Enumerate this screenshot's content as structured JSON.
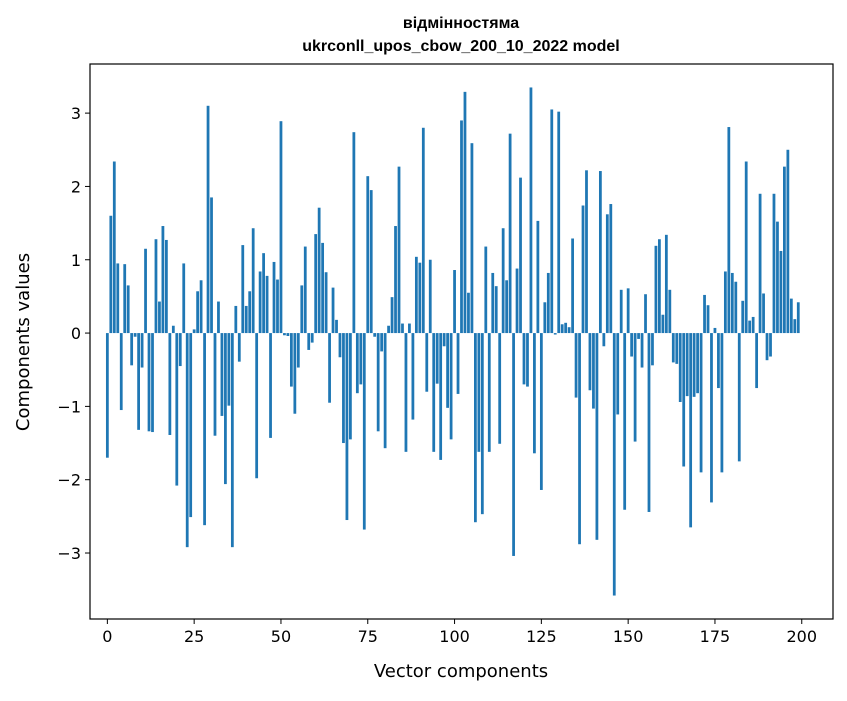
{
  "chart_data": {
    "type": "bar",
    "title_line1": "відмінностяма",
    "title_line2": "ukrconll_upos_cbow_200_10_2022 model",
    "xlabel": "Vector components",
    "ylabel": "Components values",
    "xlim": [
      -5,
      209
    ],
    "ylim": [
      -3.9,
      3.67
    ],
    "grid": false,
    "bar_color": "#1f77b4",
    "x_ticks": [
      0,
      25,
      50,
      75,
      100,
      125,
      150,
      175,
      200
    ],
    "x_tick_labels": [
      "0",
      "25",
      "50",
      "75",
      "100",
      "125",
      "150",
      "175",
      "200"
    ],
    "y_ticks": [
      -3,
      -2,
      -1,
      0,
      1,
      2,
      3
    ],
    "y_tick_labels": [
      "−3",
      "−2",
      "−1",
      "0",
      "1",
      "2",
      "3"
    ],
    "x": [
      0,
      1,
      2,
      3,
      4,
      5,
      6,
      7,
      8,
      9,
      10,
      11,
      12,
      13,
      14,
      15,
      16,
      17,
      18,
      19,
      20,
      21,
      22,
      23,
      24,
      25,
      26,
      27,
      28,
      29,
      30,
      31,
      32,
      33,
      34,
      35,
      36,
      37,
      38,
      39,
      40,
      41,
      42,
      43,
      44,
      45,
      46,
      47,
      48,
      49,
      50,
      51,
      52,
      53,
      54,
      55,
      56,
      57,
      58,
      59,
      60,
      61,
      62,
      63,
      64,
      65,
      66,
      67,
      68,
      69,
      70,
      71,
      72,
      73,
      74,
      75,
      76,
      77,
      78,
      79,
      80,
      81,
      82,
      83,
      84,
      85,
      86,
      87,
      88,
      89,
      90,
      91,
      92,
      93,
      94,
      95,
      96,
      97,
      98,
      99,
      100,
      101,
      102,
      103,
      104,
      105,
      106,
      107,
      108,
      109,
      110,
      111,
      112,
      113,
      114,
      115,
      116,
      117,
      118,
      119,
      120,
      121,
      122,
      123,
      124,
      125,
      126,
      127,
      128,
      129,
      130,
      131,
      132,
      133,
      134,
      135,
      136,
      137,
      138,
      139,
      140,
      141,
      142,
      143,
      144,
      145,
      146,
      147,
      148,
      149,
      150,
      151,
      152,
      153,
      154,
      155,
      156,
      157,
      158,
      159,
      160,
      161,
      162,
      163,
      164,
      165,
      166,
      167,
      168,
      169,
      170,
      171,
      172,
      173,
      174,
      175,
      176,
      177,
      178,
      179,
      180,
      181,
      182,
      183,
      184,
      185,
      186,
      187,
      188,
      189,
      190,
      191,
      192,
      193,
      194,
      195,
      196,
      197,
      198,
      199
    ],
    "values": [
      -1.7,
      1.6,
      2.34,
      0.95,
      -1.05,
      0.94,
      0.65,
      -0.44,
      -0.05,
      -1.32,
      -0.47,
      1.15,
      -1.34,
      -1.35,
      1.28,
      0.43,
      1.46,
      1.27,
      -1.39,
      0.1,
      -2.08,
      -0.45,
      0.95,
      -2.92,
      -2.51,
      0.05,
      0.57,
      0.72,
      -2.62,
      3.1,
      1.85,
      -1.4,
      0.43,
      -1.13,
      -2.06,
      -0.99,
      -2.92,
      0.37,
      -0.39,
      1.2,
      0.37,
      0.57,
      1.43,
      -1.98,
      0.84,
      1.09,
      0.78,
      -1.43,
      0.97,
      0.73,
      2.89,
      -0.03,
      -0.04,
      -0.73,
      -1.1,
      -0.47,
      0.65,
      1.18,
      -0.23,
      -0.13,
      1.35,
      1.71,
      1.23,
      0.83,
      -0.95,
      0.62,
      0.18,
      -0.33,
      -1.5,
      -2.55,
      -1.45,
      2.74,
      -0.82,
      -0.7,
      -2.68,
      2.14,
      1.95,
      -0.05,
      -1.34,
      -0.25,
      -1.57,
      0.1,
      0.49,
      1.46,
      2.27,
      0.13,
      -1.62,
      0.13,
      -1.18,
      1.04,
      0.96,
      2.8,
      -0.8,
      1.0,
      -1.62,
      -0.69,
      -1.73,
      -0.18,
      -1.02,
      -1.45,
      0.86,
      -0.83,
      2.9,
      3.29,
      0.55,
      2.59,
      -2.58,
      -1.62,
      -2.47,
      1.18,
      -1.62,
      0.82,
      0.64,
      -1.51,
      1.43,
      0.72,
      2.72,
      -3.04,
      0.88,
      2.12,
      -0.7,
      -0.73,
      3.35,
      -1.64,
      1.53,
      -2.14,
      0.42,
      0.82,
      3.05,
      -0.02,
      3.02,
      0.12,
      0.14,
      0.08,
      1.29,
      -0.88,
      -2.88,
      1.74,
      2.22,
      -0.78,
      -1.03,
      -2.82,
      2.21,
      -0.18,
      1.62,
      1.76,
      -3.58,
      -1.11,
      0.59,
      -2.41,
      0.61,
      -0.32,
      -1.48,
      -0.08,
      -0.47,
      0.53,
      -2.44,
      -0.44,
      1.19,
      1.28,
      0.25,
      1.34,
      0.59,
      -0.4,
      -0.42,
      -0.94,
      -1.82,
      -0.86,
      -2.65,
      -0.87,
      -0.82,
      -1.9,
      0.52,
      0.38,
      -2.31,
      0.07,
      -0.75,
      -1.9,
      0.84,
      2.81,
      0.82,
      0.7,
      -1.75,
      0.44,
      2.34,
      0.17,
      0.22,
      -0.75,
      1.9,
      0.54,
      -0.37,
      -0.32,
      1.9,
      1.52,
      1.12,
      2.27,
      2.5,
      0.47,
      0.19,
      0.42
    ]
  }
}
